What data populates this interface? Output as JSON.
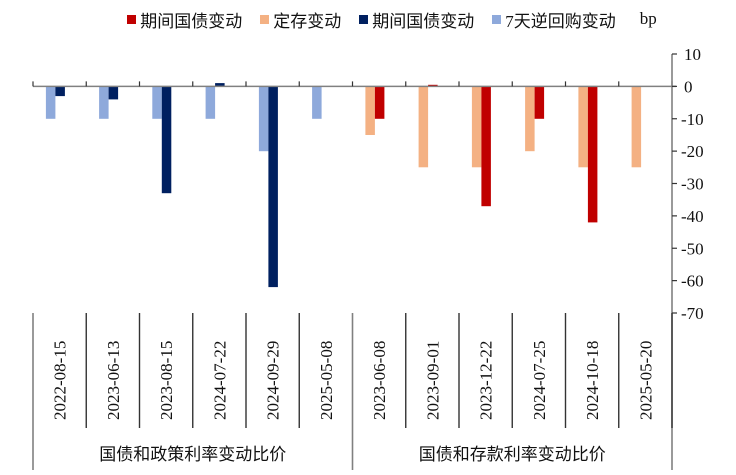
{
  "legend": {
    "items": [
      {
        "label": "期间国债变动",
        "color": "#C00000"
      },
      {
        "label": "定存变动",
        "color": "#F4B183"
      },
      {
        "label": "期间国债变动",
        "color": "#002060"
      },
      {
        "label": "7天逆回购变动",
        "color": "#8EA9DB"
      }
    ],
    "unit": "bp"
  },
  "chart_data": {
    "type": "bar",
    "title": "",
    "xlabel": "",
    "ylabel": "bp",
    "ylim": [
      -70,
      10
    ],
    "yticks": [
      10,
      0,
      -10,
      -20,
      -30,
      -40,
      -50,
      -60,
      -70
    ],
    "y_axis_position": "right",
    "grid": false,
    "legend_position": "top",
    "groups": [
      {
        "label": "国债和政策利率变动比价",
        "categories": [
          "2022-08-15",
          "2023-06-13",
          "2023-08-15",
          "2024-07-22",
          "2024-09-29",
          "2025-05-08"
        ],
        "series": [
          {
            "name": "7天逆回购变动",
            "color": "#8EA9DB",
            "values": [
              -10,
              -10,
              -10,
              -10,
              -20,
              -10
            ]
          },
          {
            "name": "期间国债变动",
            "color": "#002060",
            "values": [
              -3,
              -4,
              -33,
              1,
              -62,
              0
            ]
          }
        ]
      },
      {
        "label": "国债和存款利率变动比价",
        "categories": [
          "2023-06-08",
          "2023-09-01",
          "2023-12-22",
          "2024-07-25",
          "2024-10-18",
          "2025-05-20"
        ],
        "series": [
          {
            "name": "定存变动",
            "color": "#F4B183",
            "values": [
              -15,
              -25,
              -25,
              -20,
              -25,
              -25
            ]
          },
          {
            "name": "期间国债变动",
            "color": "#C00000",
            "values": [
              -10,
              0.5,
              -37,
              -10,
              -42,
              0
            ]
          }
        ]
      }
    ]
  }
}
